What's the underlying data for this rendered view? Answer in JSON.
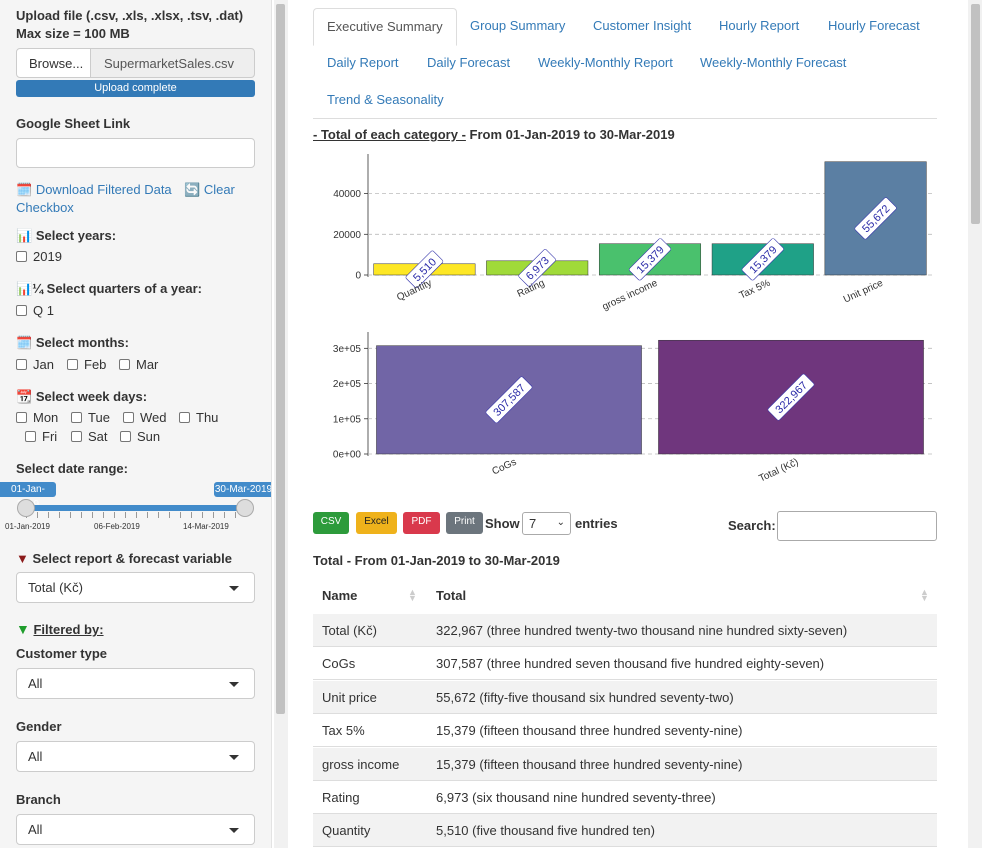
{
  "upload": {
    "label": "Upload file (.csv, .xls, .xlsx, .tsv, .dat)",
    "max": "Max size = 100 MB",
    "browse": "Browse...",
    "file": "SupermarketSales.csv",
    "status": "Upload complete"
  },
  "gsheet": {
    "label": "Google Sheet Link",
    "value": ""
  },
  "download": {
    "label": "Download Filtered Data",
    "clear1": "Clear",
    "clear2": "Checkbox"
  },
  "years": {
    "label": "Select years:",
    "items": [
      "2019"
    ]
  },
  "quarters": {
    "label": "Select quarters of a year:",
    "prefix": "¼",
    "items": [
      "Q 1"
    ]
  },
  "months": {
    "label": "Select months:",
    "items": [
      "Jan",
      "Feb",
      "Mar"
    ]
  },
  "weekdays": {
    "label": "Select week days:",
    "items": [
      "Mon",
      "Tue",
      "Wed",
      "Thu",
      "Fri",
      "Sat",
      "Sun"
    ]
  },
  "daterange": {
    "label": "Select date range:",
    "from": "01-Jan-2019",
    "to": "30-Mar-2019",
    "ticks": [
      "01-Jan-2019",
      "06-Feb-2019",
      "14-Mar-2019"
    ],
    "fill": 1.0
  },
  "report_var": {
    "label": "Select report & forecast variable",
    "value": "Total (Kč)"
  },
  "filtered": {
    "label": "Filtered by:"
  },
  "customer_type": {
    "label": "Customer type",
    "value": "All"
  },
  "gender": {
    "label": "Gender",
    "value": "All"
  },
  "branch": {
    "label": "Branch",
    "value": "All"
  },
  "tabs": [
    "Executive Summary",
    "Group Summary",
    "Customer Insight",
    "Hourly Report",
    "Hourly Forecast",
    "Daily Report",
    "Daily Forecast",
    "Weekly-Monthly Report",
    "Weekly-Monthly Forecast",
    "Trend & Seasonality"
  ],
  "section": {
    "title_u": "- Total of each category -",
    "title_rest": " From 01-Jan-2019 to 30-Mar-2019"
  },
  "chart_data": [
    {
      "type": "bar",
      "categories": [
        "Quantity",
        "Rating",
        "gross income",
        "Tax 5%",
        "Unit price"
      ],
      "values": [
        5510,
        6973,
        15379,
        15379,
        55672
      ],
      "labels": [
        "5,510",
        "6,973",
        "15,379",
        "15,379",
        "55,672"
      ],
      "ylim": [
        0,
        57500
      ],
      "yticks": [
        0,
        20000,
        40000
      ],
      "yticklabels": [
        "0",
        "20000",
        "40000"
      ],
      "colors": [
        "#fde725",
        "#a0da39",
        "#4ac16d",
        "#1fa187",
        "#5b7fa3"
      ]
    },
    {
      "type": "bar",
      "categories": [
        "CoGs",
        "Total (Kč)"
      ],
      "values": [
        307587,
        322967
      ],
      "labels": [
        "307,587",
        "322,967"
      ],
      "ylim": [
        0,
        335000
      ],
      "yticks": [
        0,
        100000,
        200000,
        300000
      ],
      "yticklabels": [
        "0e+00",
        "1e+05",
        "2e+05",
        "3e+05"
      ],
      "colors": [
        "#7165a6",
        "#6f367d"
      ]
    }
  ],
  "dt": {
    "buttons": [
      "CSV",
      "Excel",
      "PDF",
      "Print"
    ],
    "btn_colors": [
      "#2d9b3b",
      "#efb21b",
      "#d9394c",
      "#6c757d"
    ],
    "show": "Show",
    "entries_value": "7",
    "entries": "entries",
    "search": "Search:",
    "caption": "Total - From 01-Jan-2019 to 30-Mar-2019",
    "headers": [
      "Name",
      "Total"
    ],
    "rows": [
      [
        "Total (Kč)",
        "322,967 (three hundred twenty-two thousand nine hundred sixty-seven)"
      ],
      [
        "CoGs",
        "307,587 (three hundred seven thousand five hundred eighty-seven)"
      ],
      [
        "Unit price",
        "55,672 (fifty-five thousand six hundred seventy-two)"
      ],
      [
        "Tax 5%",
        "15,379 (fifteen thousand three hundred seventy-nine)"
      ],
      [
        "gross income",
        "15,379 (fifteen thousand three hundred seventy-nine)"
      ],
      [
        "Rating",
        "6,973 (six thousand nine hundred seventy-three)"
      ],
      [
        "Quantity",
        "5,510 (five thousand five hundred ten)"
      ]
    ]
  }
}
